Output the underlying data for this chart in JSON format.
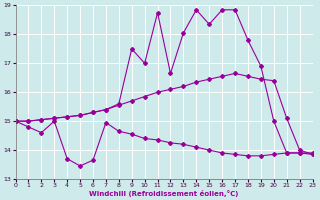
{
  "xlabel": "Windchill (Refroidissement éolien,°C)",
  "xlim": [
    0,
    23
  ],
  "ylim": [
    13,
    19
  ],
  "yticks": [
    13,
    14,
    15,
    16,
    17,
    18,
    19
  ],
  "xticks": [
    0,
    1,
    2,
    3,
    4,
    5,
    6,
    7,
    8,
    9,
    10,
    11,
    12,
    13,
    14,
    15,
    16,
    17,
    18,
    19,
    20,
    21,
    22,
    23
  ],
  "bg_color": "#ceeaea",
  "line_color": "#990099",
  "grid_color": "#ffffff",
  "series1_x": [
    0,
    1,
    2,
    3,
    4,
    5,
    6,
    7,
    8,
    9,
    10,
    11,
    12,
    13,
    14,
    15,
    16,
    17,
    18,
    19,
    20,
    21,
    22,
    23
  ],
  "series1_y": [
    15.0,
    14.8,
    14.6,
    15.0,
    13.7,
    13.45,
    13.65,
    14.95,
    14.65,
    14.55,
    14.4,
    14.35,
    14.25,
    14.2,
    14.1,
    14.0,
    13.9,
    13.85,
    13.8,
    13.8,
    13.85,
    13.9,
    13.9,
    13.9
  ],
  "series2_x": [
    0,
    1,
    2,
    3,
    4,
    5,
    6,
    7,
    8,
    9,
    10,
    11,
    12,
    13,
    14,
    15,
    16,
    17,
    18,
    19,
    20,
    21,
    22,
    23
  ],
  "series2_y": [
    15.0,
    15.0,
    15.05,
    15.1,
    15.15,
    15.2,
    15.3,
    15.4,
    15.55,
    15.7,
    15.85,
    16.0,
    16.1,
    16.2,
    16.35,
    16.45,
    16.55,
    16.65,
    16.55,
    16.45,
    16.4,
    15.1,
    14.0,
    13.85
  ],
  "series3_x": [
    0,
    1,
    2,
    3,
    4,
    5,
    6,
    7,
    8,
    9,
    10,
    11,
    12,
    13,
    14,
    15,
    16,
    17,
    18,
    19,
    20,
    21,
    22,
    23
  ],
  "series3_y": [
    15.0,
    15.0,
    15.05,
    15.1,
    15.15,
    15.2,
    15.3,
    15.4,
    15.6,
    17.5,
    17.0,
    18.75,
    16.65,
    18.05,
    18.85,
    18.35,
    18.85,
    18.85,
    17.8,
    16.9,
    15.0,
    13.9,
    13.9,
    13.85
  ]
}
